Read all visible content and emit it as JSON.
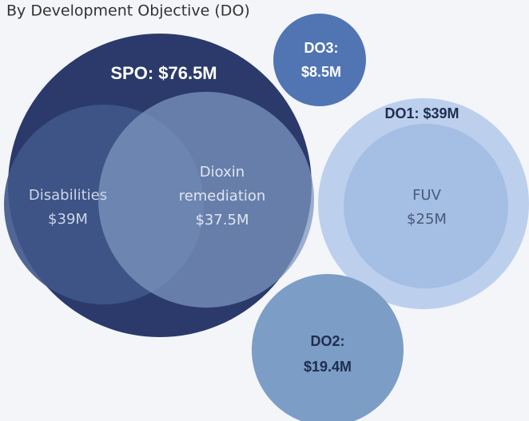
{
  "title": "By Development Objective (DO)",
  "nodes": [
    {
      "lines": [
        "SPO: $76.5M"
      ]
    },
    {
      "lines": [
        "Disabilities",
        "$39M"
      ]
    },
    {
      "lines": [
        "Dioxin",
        "remediation",
        "$37.5M"
      ]
    },
    {
      "lines": [
        "DO3:",
        "$8.5M"
      ]
    },
    {
      "lines": [
        "DO1: $39M"
      ]
    },
    {
      "lines": [
        "FUV",
        "$25M"
      ]
    },
    {
      "lines": [
        "DO2:",
        "$19.4M"
      ]
    }
  ]
}
